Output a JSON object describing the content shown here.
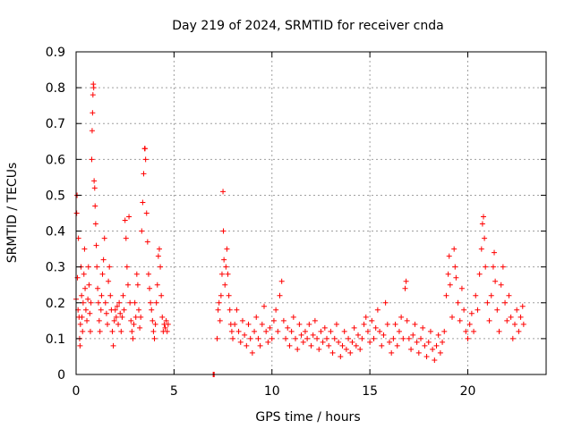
{
  "chart_data": {
    "type": "scatter",
    "title": "Day 219 of 2024, SRMTID for receiver cnda",
    "xlabel": "GPS time / hours",
    "ylabel": "SRMTID / TECUs",
    "xlim": [
      0,
      24
    ],
    "ylim": [
      0,
      0.9
    ],
    "xticks": [
      0,
      5,
      10,
      15,
      20
    ],
    "yticks": [
      0,
      0.1,
      0.2,
      0.3,
      0.4,
      0.5,
      0.6,
      0.7,
      0.8,
      0.9
    ],
    "grid": true,
    "marker": "+",
    "series": [
      {
        "name": "SRMTID",
        "color": "#ff0000",
        "points": [
          [
            0.0,
            0.21
          ],
          [
            0.03,
            0.45
          ],
          [
            0.05,
            0.5
          ],
          [
            0.07,
            0.27
          ],
          [
            0.1,
            0.18
          ],
          [
            0.12,
            0.38
          ],
          [
            0.15,
            0.16
          ],
          [
            0.18,
            0.1
          ],
          [
            0.2,
            0.08
          ],
          [
            0.22,
            0.14
          ],
          [
            0.25,
            0.3
          ],
          [
            0.28,
            0.22
          ],
          [
            0.3,
            0.16
          ],
          [
            0.33,
            0.12
          ],
          [
            0.36,
            0.2
          ],
          [
            0.4,
            0.28
          ],
          [
            0.43,
            0.35
          ],
          [
            0.46,
            0.24
          ],
          [
            0.5,
            0.18
          ],
          [
            0.55,
            0.15
          ],
          [
            0.6,
            0.21
          ],
          [
            0.63,
            0.3
          ],
          [
            0.66,
            0.25
          ],
          [
            0.7,
            0.17
          ],
          [
            0.73,
            0.12
          ],
          [
            0.76,
            0.2
          ],
          [
            0.8,
            0.6
          ],
          [
            0.82,
            0.68
          ],
          [
            0.84,
            0.73
          ],
          [
            0.86,
            0.78
          ],
          [
            0.88,
            0.81
          ],
          [
            0.9,
            0.8
          ],
          [
            0.92,
            0.54
          ],
          [
            0.95,
            0.52
          ],
          [
            0.97,
            0.47
          ],
          [
            1.0,
            0.42
          ],
          [
            1.03,
            0.36
          ],
          [
            1.06,
            0.3
          ],
          [
            1.1,
            0.24
          ],
          [
            1.14,
            0.2
          ],
          [
            1.18,
            0.15
          ],
          [
            1.22,
            0.12
          ],
          [
            1.27,
            0.18
          ],
          [
            1.3,
            0.22
          ],
          [
            1.35,
            0.28
          ],
          [
            1.4,
            0.32
          ],
          [
            1.45,
            0.38
          ],
          [
            1.5,
            0.2
          ],
          [
            1.55,
            0.17
          ],
          [
            1.6,
            0.14
          ],
          [
            1.65,
            0.26
          ],
          [
            1.7,
            0.3
          ],
          [
            1.75,
            0.22
          ],
          [
            1.8,
            0.18
          ],
          [
            1.85,
            0.12
          ],
          [
            1.9,
            0.08
          ],
          [
            1.95,
            0.15
          ],
          [
            2.0,
            0.18
          ],
          [
            2.05,
            0.16
          ],
          [
            2.1,
            0.19
          ],
          [
            2.15,
            0.14
          ],
          [
            2.2,
            0.2
          ],
          [
            2.25,
            0.17
          ],
          [
            2.3,
            0.12
          ],
          [
            2.35,
            0.16
          ],
          [
            2.4,
            0.22
          ],
          [
            2.45,
            0.18
          ],
          [
            2.5,
            0.43
          ],
          [
            2.55,
            0.38
          ],
          [
            2.6,
            0.3
          ],
          [
            2.65,
            0.25
          ],
          [
            2.7,
            0.44
          ],
          [
            2.75,
            0.2
          ],
          [
            2.8,
            0.15
          ],
          [
            2.85,
            0.12
          ],
          [
            2.9,
            0.1
          ],
          [
            2.95,
            0.14
          ],
          [
            3.0,
            0.2
          ],
          [
            3.05,
            0.16
          ],
          [
            3.1,
            0.28
          ],
          [
            3.15,
            0.25
          ],
          [
            3.2,
            0.18
          ],
          [
            3.25,
            0.13
          ],
          [
            3.3,
            0.16
          ],
          [
            3.35,
            0.4
          ],
          [
            3.4,
            0.48
          ],
          [
            3.45,
            0.56
          ],
          [
            3.5,
            0.63
          ],
          [
            3.52,
            0.63
          ],
          [
            3.55,
            0.6
          ],
          [
            3.6,
            0.45
          ],
          [
            3.65,
            0.37
          ],
          [
            3.7,
            0.28
          ],
          [
            3.75,
            0.24
          ],
          [
            3.8,
            0.2
          ],
          [
            3.85,
            0.18
          ],
          [
            3.9,
            0.15
          ],
          [
            3.95,
            0.12
          ],
          [
            4.0,
            0.1
          ],
          [
            4.05,
            0.14
          ],
          [
            4.1,
            0.2
          ],
          [
            4.15,
            0.25
          ],
          [
            4.2,
            0.33
          ],
          [
            4.25,
            0.35
          ],
          [
            4.3,
            0.3
          ],
          [
            4.35,
            0.22
          ],
          [
            4.4,
            0.16
          ],
          [
            4.45,
            0.12
          ],
          [
            4.5,
            0.14
          ],
          [
            4.55,
            0.13
          ],
          [
            4.6,
            0.15
          ],
          [
            4.65,
            0.12
          ],
          [
            4.7,
            0.14
          ],
          [
            7.0,
            0.0
          ],
          [
            7.02,
            0.0
          ],
          [
            7.05,
            0.0
          ],
          [
            7.2,
            0.1
          ],
          [
            7.25,
            0.18
          ],
          [
            7.3,
            0.2
          ],
          [
            7.35,
            0.15
          ],
          [
            7.4,
            0.22
          ],
          [
            7.45,
            0.28
          ],
          [
            7.5,
            0.51
          ],
          [
            7.52,
            0.4
          ],
          [
            7.55,
            0.32
          ],
          [
            7.6,
            0.25
          ],
          [
            7.65,
            0.3
          ],
          [
            7.7,
            0.35
          ],
          [
            7.75,
            0.28
          ],
          [
            7.8,
            0.22
          ],
          [
            7.85,
            0.18
          ],
          [
            7.9,
            0.14
          ],
          [
            7.95,
            0.12
          ],
          [
            8.0,
            0.1
          ],
          [
            8.1,
            0.14
          ],
          [
            8.2,
            0.18
          ],
          [
            8.3,
            0.12
          ],
          [
            8.4,
            0.09
          ],
          [
            8.5,
            0.15
          ],
          [
            8.6,
            0.11
          ],
          [
            8.7,
            0.08
          ],
          [
            8.8,
            0.14
          ],
          [
            8.9,
            0.1
          ],
          [
            9.0,
            0.06
          ],
          [
            9.1,
            0.12
          ],
          [
            9.2,
            0.16
          ],
          [
            9.3,
            0.1
          ],
          [
            9.4,
            0.08
          ],
          [
            9.5,
            0.14
          ],
          [
            9.6,
            0.19
          ],
          [
            9.7,
            0.12
          ],
          [
            9.8,
            0.09
          ],
          [
            9.9,
            0.13
          ],
          [
            10.0,
            0.1
          ],
          [
            10.1,
            0.15
          ],
          [
            10.2,
            0.18
          ],
          [
            10.3,
            0.12
          ],
          [
            10.4,
            0.22
          ],
          [
            10.5,
            0.26
          ],
          [
            10.6,
            0.15
          ],
          [
            10.7,
            0.1
          ],
          [
            10.8,
            0.13
          ],
          [
            10.9,
            0.08
          ],
          [
            11.0,
            0.12
          ],
          [
            11.1,
            0.16
          ],
          [
            11.2,
            0.1
          ],
          [
            11.3,
            0.07
          ],
          [
            11.4,
            0.14
          ],
          [
            11.5,
            0.11
          ],
          [
            11.6,
            0.09
          ],
          [
            11.7,
            0.12
          ],
          [
            11.8,
            0.1
          ],
          [
            11.9,
            0.14
          ],
          [
            12.0,
            0.08
          ],
          [
            12.1,
            0.11
          ],
          [
            12.2,
            0.15
          ],
          [
            12.3,
            0.1
          ],
          [
            12.4,
            0.07
          ],
          [
            12.5,
            0.12
          ],
          [
            12.6,
            0.09
          ],
          [
            12.7,
            0.13
          ],
          [
            12.8,
            0.1
          ],
          [
            12.9,
            0.08
          ],
          [
            13.0,
            0.12
          ],
          [
            13.1,
            0.06
          ],
          [
            13.2,
            0.1
          ],
          [
            13.3,
            0.14
          ],
          [
            13.4,
            0.09
          ],
          [
            13.5,
            0.05
          ],
          [
            13.6,
            0.08
          ],
          [
            13.7,
            0.12
          ],
          [
            13.8,
            0.07
          ],
          [
            13.9,
            0.1
          ],
          [
            14.0,
            0.06
          ],
          [
            14.1,
            0.09
          ],
          [
            14.2,
            0.13
          ],
          [
            14.3,
            0.08
          ],
          [
            14.4,
            0.11
          ],
          [
            14.5,
            0.07
          ],
          [
            14.6,
            0.1
          ],
          [
            14.7,
            0.14
          ],
          [
            14.8,
            0.16
          ],
          [
            14.9,
            0.12
          ],
          [
            15.0,
            0.09
          ],
          [
            15.1,
            0.15
          ],
          [
            15.2,
            0.1
          ],
          [
            15.3,
            0.13
          ],
          [
            15.4,
            0.18
          ],
          [
            15.5,
            0.12
          ],
          [
            15.6,
            0.08
          ],
          [
            15.7,
            0.11
          ],
          [
            15.8,
            0.2
          ],
          [
            15.9,
            0.14
          ],
          [
            16.0,
            0.09
          ],
          [
            16.1,
            0.06
          ],
          [
            16.2,
            0.1
          ],
          [
            16.3,
            0.14
          ],
          [
            16.4,
            0.08
          ],
          [
            16.5,
            0.12
          ],
          [
            16.6,
            0.16
          ],
          [
            16.7,
            0.1
          ],
          [
            16.8,
            0.24
          ],
          [
            16.85,
            0.26
          ],
          [
            16.9,
            0.15
          ],
          [
            17.0,
            0.1
          ],
          [
            17.1,
            0.07
          ],
          [
            17.2,
            0.11
          ],
          [
            17.3,
            0.14
          ],
          [
            17.4,
            0.09
          ],
          [
            17.5,
            0.06
          ],
          [
            17.6,
            0.1
          ],
          [
            17.7,
            0.13
          ],
          [
            17.8,
            0.08
          ],
          [
            17.9,
            0.05
          ],
          [
            18.0,
            0.09
          ],
          [
            18.1,
            0.12
          ],
          [
            18.2,
            0.07
          ],
          [
            18.3,
            0.04
          ],
          [
            18.4,
            0.08
          ],
          [
            18.5,
            0.11
          ],
          [
            18.6,
            0.06
          ],
          [
            18.7,
            0.09
          ],
          [
            18.8,
            0.12
          ],
          [
            18.9,
            0.22
          ],
          [
            19.0,
            0.28
          ],
          [
            19.05,
            0.33
          ],
          [
            19.1,
            0.25
          ],
          [
            19.2,
            0.16
          ],
          [
            19.3,
            0.35
          ],
          [
            19.35,
            0.3
          ],
          [
            19.4,
            0.27
          ],
          [
            19.5,
            0.2
          ],
          [
            19.6,
            0.15
          ],
          [
            19.7,
            0.24
          ],
          [
            19.8,
            0.18
          ],
          [
            19.9,
            0.12
          ],
          [
            20.0,
            0.1
          ],
          [
            20.1,
            0.14
          ],
          [
            20.2,
            0.17
          ],
          [
            20.3,
            0.12
          ],
          [
            20.4,
            0.22
          ],
          [
            20.5,
            0.18
          ],
          [
            20.6,
            0.28
          ],
          [
            20.7,
            0.35
          ],
          [
            20.75,
            0.42
          ],
          [
            20.8,
            0.44
          ],
          [
            20.85,
            0.38
          ],
          [
            20.9,
            0.3
          ],
          [
            21.0,
            0.2
          ],
          [
            21.1,
            0.15
          ],
          [
            21.2,
            0.22
          ],
          [
            21.3,
            0.3
          ],
          [
            21.35,
            0.34
          ],
          [
            21.4,
            0.26
          ],
          [
            21.5,
            0.18
          ],
          [
            21.6,
            0.12
          ],
          [
            21.7,
            0.25
          ],
          [
            21.8,
            0.3
          ],
          [
            21.9,
            0.2
          ],
          [
            22.0,
            0.15
          ],
          [
            22.1,
            0.22
          ],
          [
            22.2,
            0.16
          ],
          [
            22.3,
            0.1
          ],
          [
            22.4,
            0.14
          ],
          [
            22.5,
            0.18
          ],
          [
            22.6,
            0.12
          ],
          [
            22.7,
            0.16
          ],
          [
            22.8,
            0.19
          ],
          [
            22.85,
            0.14
          ]
        ]
      }
    ]
  }
}
